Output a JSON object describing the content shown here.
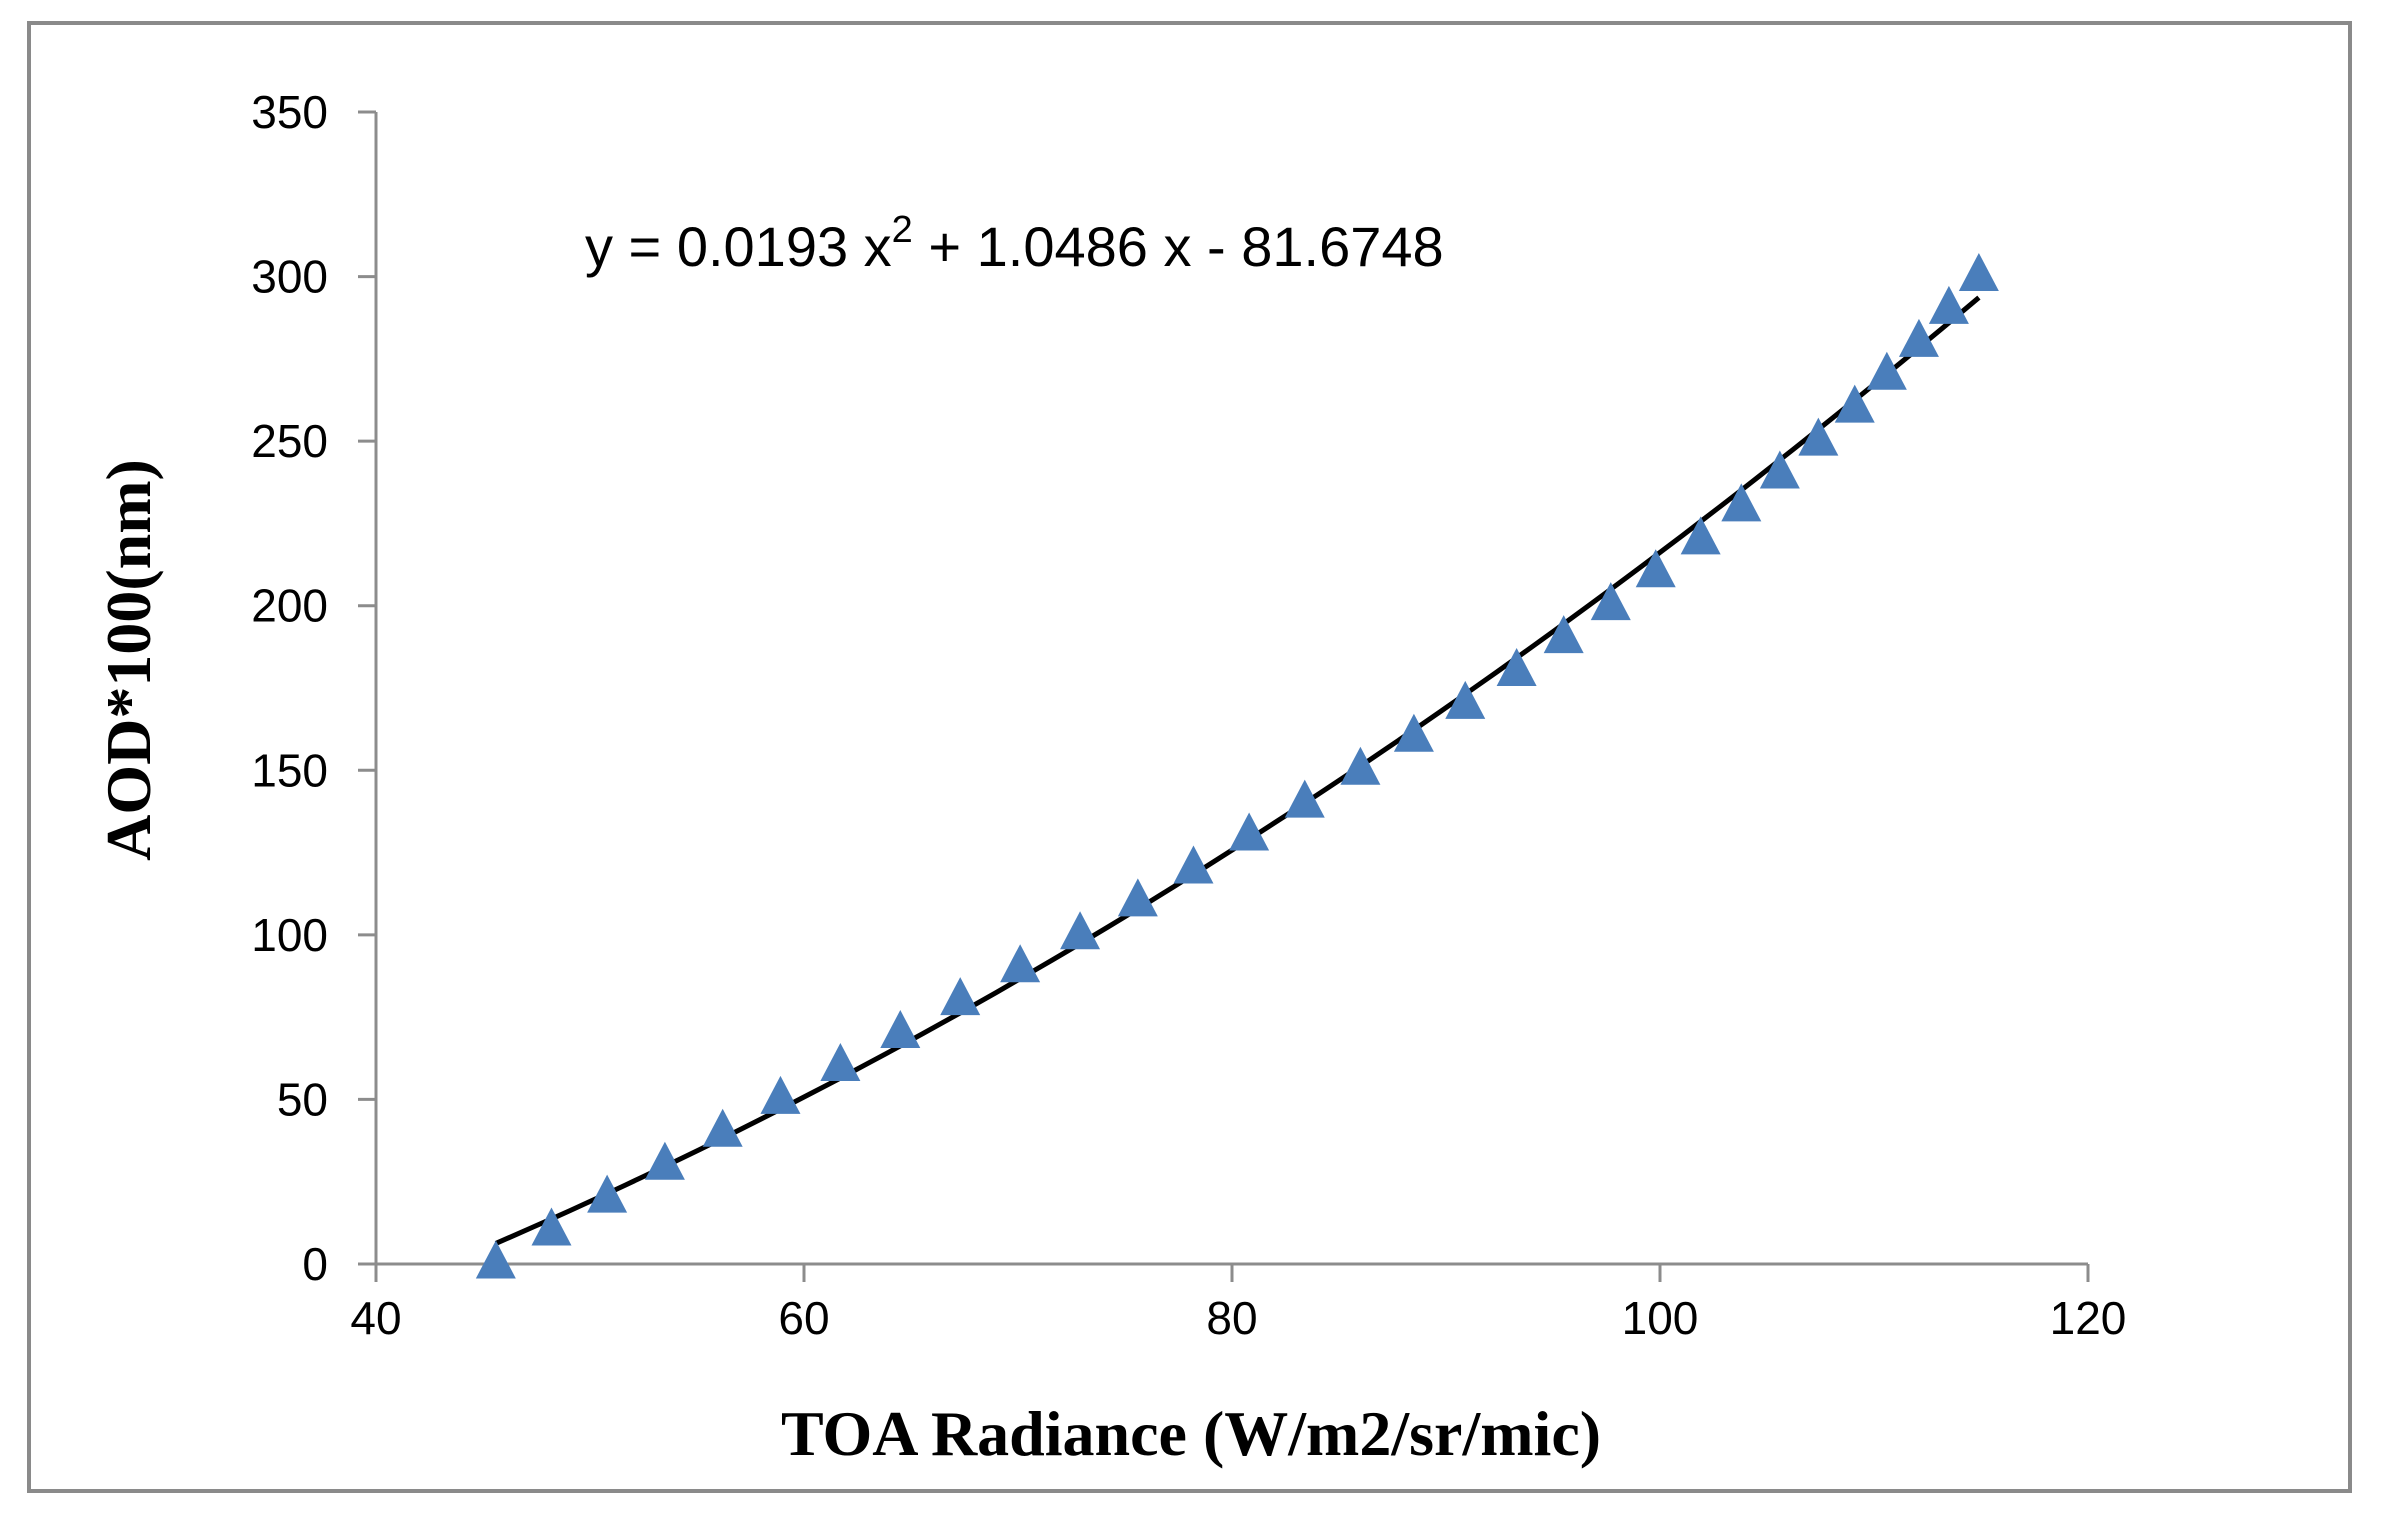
{
  "chart_data": {
    "type": "scatter",
    "title": "",
    "xlabel": "TOA Radiance (W/m2/sr/mic)",
    "ylabel": "AOD*100(nm)",
    "xlim": [
      40,
      120
    ],
    "ylim": [
      0,
      350
    ],
    "xticks": [
      40,
      60,
      80,
      100,
      120
    ],
    "yticks": [
      0,
      50,
      100,
      150,
      200,
      250,
      300,
      350
    ],
    "xtick_labels": [
      "40",
      "60",
      "80",
      "100",
      "120"
    ],
    "ytick_labels": [
      "0",
      "50",
      "100",
      "150",
      "200",
      "250",
      "300",
      "350"
    ],
    "grid": false,
    "series": [
      {
        "name": "AOD",
        "marker": "triangle",
        "color": "#4a7ebb",
        "x": [
          45.6,
          48.2,
          50.8,
          53.5,
          56.2,
          58.9,
          61.7,
          64.5,
          67.3,
          70.1,
          72.9,
          75.6,
          78.2,
          80.8,
          83.4,
          86.0,
          88.5,
          90.9,
          93.3,
          95.5,
          97.7,
          99.8,
          101.9,
          103.8,
          105.6,
          107.4,
          109.1,
          110.6,
          112.1,
          113.5,
          114.9
        ],
        "y": [
          0,
          10,
          20,
          30,
          40,
          50,
          60,
          70,
          80,
          90,
          100,
          110,
          120,
          130,
          140,
          150,
          160,
          170,
          180,
          190,
          200,
          210,
          220,
          230,
          240,
          250,
          260,
          270,
          280,
          290,
          300
        ]
      }
    ],
    "trendline": {
      "type": "polynomial",
      "order": 2,
      "coefficients": [
        0.0193,
        1.0486,
        -81.6748
      ],
      "x_range": [
        45.6,
        114.9
      ],
      "color": "#000000"
    },
    "annotations": {
      "equation_main": "y = 0.0193 x",
      "equation_superscript": "2",
      "equation_tail": " + 1.0486 x - 81.6748"
    }
  }
}
